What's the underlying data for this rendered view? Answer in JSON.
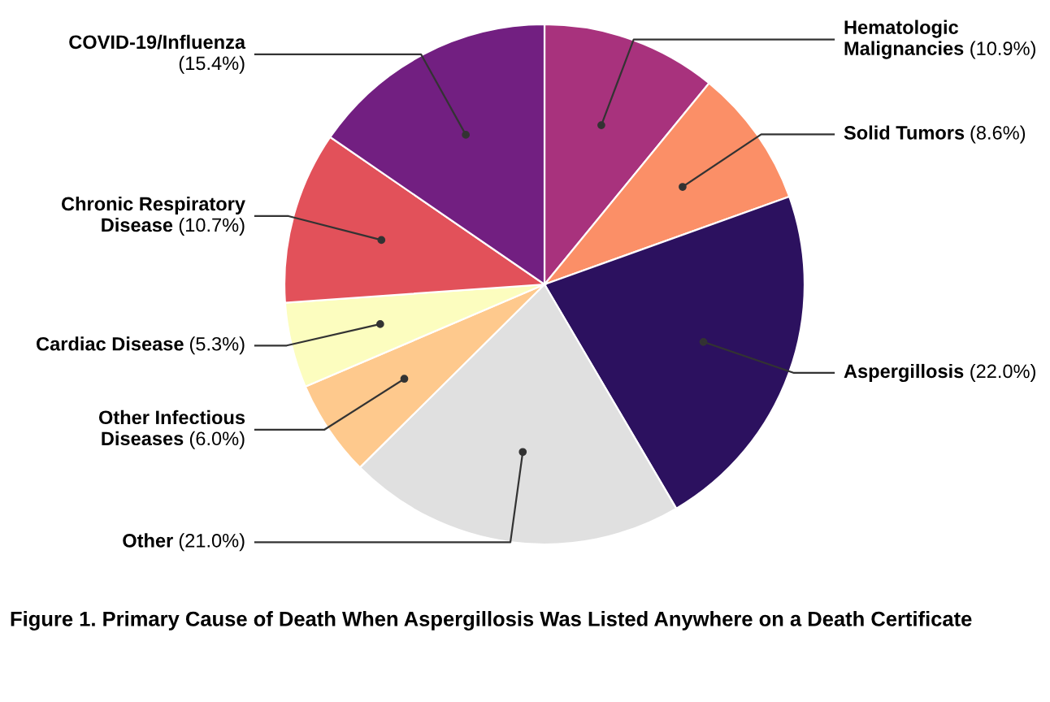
{
  "chart_data": {
    "type": "pie",
    "title": "Figure 1. Primary Cause of Death When Aspergillosis Was Listed Anywhere on a Death Certificate",
    "categories": [
      "Hematologic\nMalignancies",
      "Solid Tumors",
      "Aspergillosis",
      "Other",
      "Other Infectious\nDiseases",
      "Cardiac Disease",
      "Chronic Respiratory\nDisease",
      "COVID-19/Influenza"
    ],
    "values": [
      10.9,
      8.6,
      22.0,
      21.0,
      6.0,
      5.3,
      10.7,
      15.4
    ],
    "value_labels": [
      "(10.9%)",
      "(8.6%)",
      "(22.0%)",
      "(21.0%)",
      "(6.0%)",
      "(5.3%)",
      "(10.7%)",
      "\n(15.4%)"
    ],
    "colors": [
      "#a8327d",
      "#fb8f67",
      "#2c115f",
      "#e0e0e0",
      "#fec98d",
      "#fcfdbf",
      "#e2515a",
      "#721f81"
    ]
  }
}
